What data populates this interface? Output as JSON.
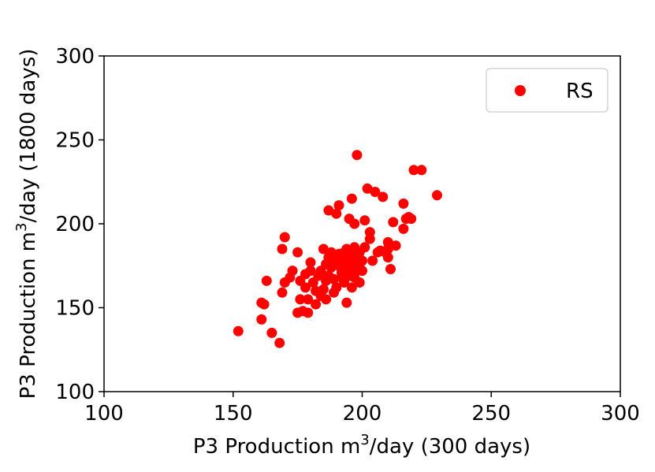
{
  "chart_data": {
    "type": "scatter",
    "xlabel_prefix": "P3 Production m",
    "xlabel_sup": "3",
    "xlabel_suffix": "/day (300 days)",
    "ylabel_prefix": "P3 Production m",
    "ylabel_sup": "3",
    "ylabel_suffix": "/day (1800 days)",
    "xlim": [
      100,
      300
    ],
    "ylim": [
      100,
      300
    ],
    "xticks": [
      "100",
      "150",
      "200",
      "250",
      "300"
    ],
    "yticks": [
      "100",
      "150",
      "200",
      "250",
      "300"
    ],
    "grid": false,
    "legend_position": "top-right",
    "series": [
      {
        "name": "RS",
        "color": "#ff0000",
        "points": [
          [
            152,
            136
          ],
          [
            161,
            153
          ],
          [
            162,
            152
          ],
          [
            161,
            143
          ],
          [
            163,
            166
          ],
          [
            165,
            135
          ],
          [
            168,
            129
          ],
          [
            169,
            185
          ],
          [
            169,
            159
          ],
          [
            170,
            165
          ],
          [
            170,
            192
          ],
          [
            172,
            168
          ],
          [
            173,
            172
          ],
          [
            175,
            183
          ],
          [
            175,
            147
          ],
          [
            176,
            155
          ],
          [
            176,
            166
          ],
          [
            177,
            148
          ],
          [
            178,
            170
          ],
          [
            178,
            162
          ],
          [
            179,
            155
          ],
          [
            179,
            147
          ],
          [
            180,
            177
          ],
          [
            180,
            172
          ],
          [
            181,
            165
          ],
          [
            182,
            160
          ],
          [
            182,
            152
          ],
          [
            183,
            169
          ],
          [
            184,
            157
          ],
          [
            184,
            172
          ],
          [
            185,
            185
          ],
          [
            185,
            161
          ],
          [
            186,
            166
          ],
          [
            186,
            176
          ],
          [
            186,
            155
          ],
          [
            187,
            180
          ],
          [
            187,
            208
          ],
          [
            187,
            169
          ],
          [
            188,
            183
          ],
          [
            188,
            174
          ],
          [
            189,
            167
          ],
          [
            189,
            159
          ],
          [
            189,
            178
          ],
          [
            190,
            206
          ],
          [
            190,
            162
          ],
          [
            191,
            211
          ],
          [
            191,
            175
          ],
          [
            191,
            182
          ],
          [
            192,
            168
          ],
          [
            192,
            171
          ],
          [
            192,
            180
          ],
          [
            193,
            183
          ],
          [
            193,
            175
          ],
          [
            193,
            165
          ],
          [
            194,
            185
          ],
          [
            194,
            153
          ],
          [
            194,
            177
          ],
          [
            194,
            171
          ],
          [
            195,
            203
          ],
          [
            195,
            180
          ],
          [
            195,
            169
          ],
          [
            196,
            215
          ],
          [
            196,
            183
          ],
          [
            196,
            172
          ],
          [
            196,
            162
          ],
          [
            197,
            186
          ],
          [
            197,
            176
          ],
          [
            197,
            200
          ],
          [
            197,
            168
          ],
          [
            198,
            241
          ],
          [
            198,
            181
          ],
          [
            198,
            172
          ],
          [
            198,
            179
          ],
          [
            199,
            177
          ],
          [
            199,
            174
          ],
          [
            199,
            165
          ],
          [
            199,
            183
          ],
          [
            200,
            178
          ],
          [
            200,
            172
          ],
          [
            201,
            186
          ],
          [
            201,
            202
          ],
          [
            202,
            221
          ],
          [
            203,
            191
          ],
          [
            203,
            195
          ],
          [
            204,
            178
          ],
          [
            205,
            219
          ],
          [
            206,
            183
          ],
          [
            207,
            184
          ],
          [
            208,
            216
          ],
          [
            209,
            183
          ],
          [
            210,
            180
          ],
          [
            210,
            189
          ],
          [
            210,
            185
          ],
          [
            211,
            173
          ],
          [
            211,
            187
          ],
          [
            212,
            201
          ],
          [
            213,
            187
          ],
          [
            216,
            212
          ],
          [
            216,
            197
          ],
          [
            217,
            203
          ],
          [
            218,
            204
          ],
          [
            219,
            203
          ],
          [
            220,
            232
          ],
          [
            223,
            232
          ],
          [
            229,
            217
          ]
        ]
      }
    ]
  }
}
